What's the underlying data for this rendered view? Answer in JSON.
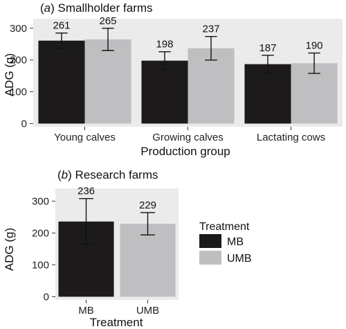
{
  "chart_data": [
    {
      "type": "bar",
      "panel": "a",
      "title_prefix": "(",
      "title_letter": "a",
      "title_suffix": ") Smallholder farms",
      "xlabel": "Production group",
      "ylabel": "ADG (g)",
      "categories": [
        "Young calves",
        "Growing calves",
        "Lactating cows"
      ],
      "series": [
        {
          "name": "MB",
          "values": [
            261,
            198,
            187
          ],
          "error": [
            24,
            28,
            28
          ],
          "color": "#1c1a1b"
        },
        {
          "name": "UMB",
          "values": [
            265,
            237,
            190
          ],
          "error": [
            35,
            37,
            32
          ],
          "color": "#bfbfc1"
        }
      ],
      "data_labels": [
        [
          "261",
          "198",
          "187"
        ],
        [
          "265",
          "237",
          "190"
        ]
      ],
      "ylim": [
        -10,
        330
      ],
      "yticks": [
        0,
        100,
        200,
        300
      ],
      "ytick_labels": [
        "0",
        "100",
        "200",
        "300"
      ],
      "grid": false,
      "background": "#ebebeb"
    },
    {
      "type": "bar",
      "panel": "b",
      "title_prefix": "(",
      "title_letter": "b",
      "title_suffix": ") Research farms",
      "xlabel": "Treatment",
      "ylabel": "ADG (g)",
      "categories": [
        "MB",
        "UMB"
      ],
      "values": [
        236,
        229
      ],
      "error": [
        72,
        35
      ],
      "colors": [
        "#1c1a1b",
        "#bfbfc1"
      ],
      "data_labels": [
        "236",
        "229"
      ],
      "ylim": [
        -10,
        340
      ],
      "yticks": [
        0,
        100,
        200,
        300
      ],
      "ytick_labels": [
        "0",
        "100",
        "200",
        "300"
      ],
      "grid": false,
      "background": "#ebebeb",
      "legend": {
        "title": "Treatment",
        "placement": "right",
        "items": [
          {
            "label": "MB",
            "color": "#1c1a1b"
          },
          {
            "label": "UMB",
            "color": "#bfbfc1"
          }
        ]
      }
    }
  ]
}
